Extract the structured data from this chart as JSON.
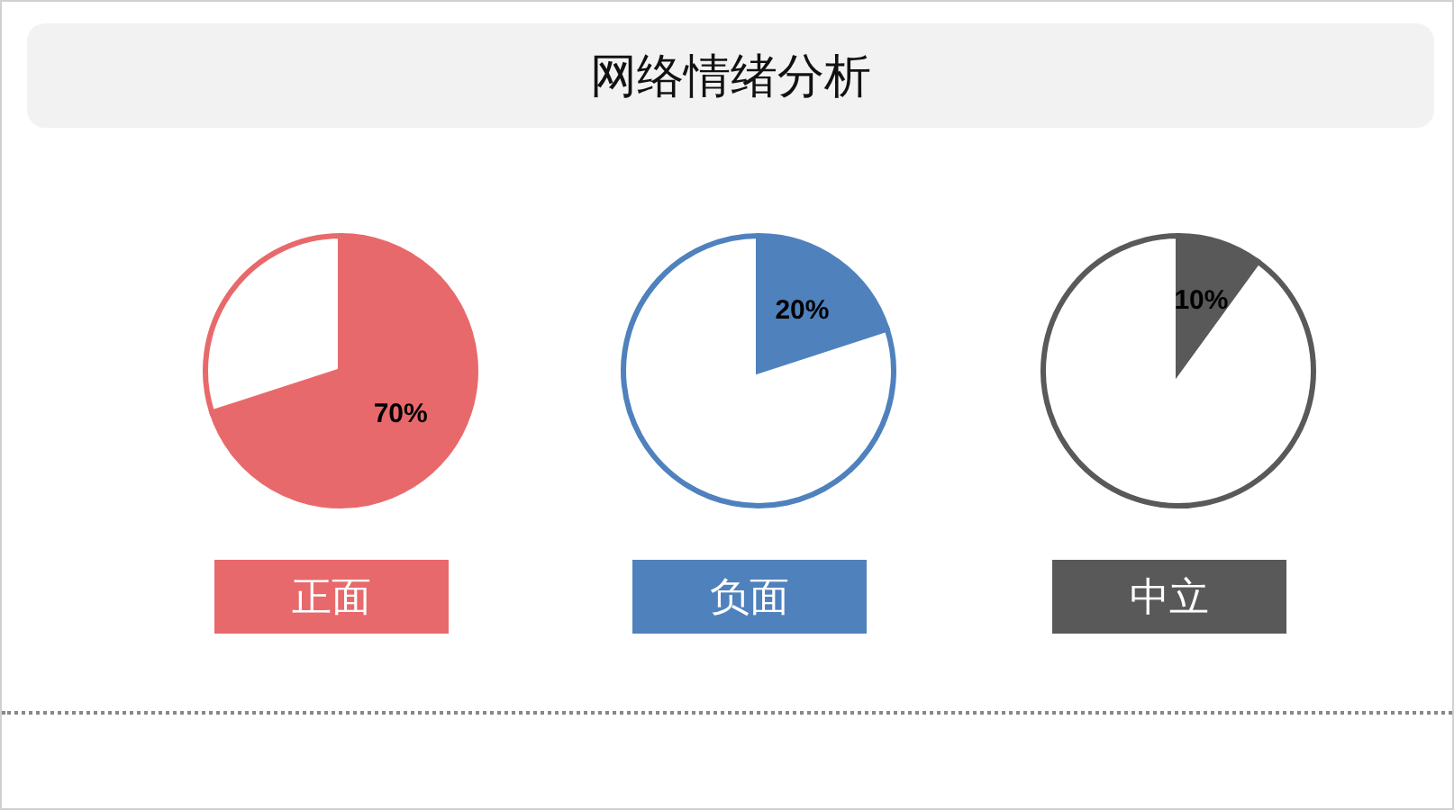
{
  "chart_data": [
    {
      "type": "other",
      "title": "网络情绪分析"
    },
    {
      "type": "pie",
      "title": "正面",
      "categories": [
        null,
        null
      ],
      "values": [
        70,
        30
      ],
      "colors": [
        "#e8696b",
        "#ffffff"
      ],
      "value_labels": [
        "70%",
        null
      ]
    },
    {
      "type": "pie",
      "title": "负面",
      "categories": [
        null,
        null
      ],
      "values": [
        20,
        80
      ],
      "colors": [
        "#4f81bd",
        "#ffffff"
      ],
      "value_labels": [
        "20%",
        null
      ]
    },
    {
      "type": "pie",
      "title": "中立",
      "categories": [
        null,
        null
      ],
      "values": [
        10,
        90
      ],
      "colors": [
        "#595959",
        "#ffffff"
      ],
      "value_labels": [
        "10%",
        null
      ]
    }
  ]
}
